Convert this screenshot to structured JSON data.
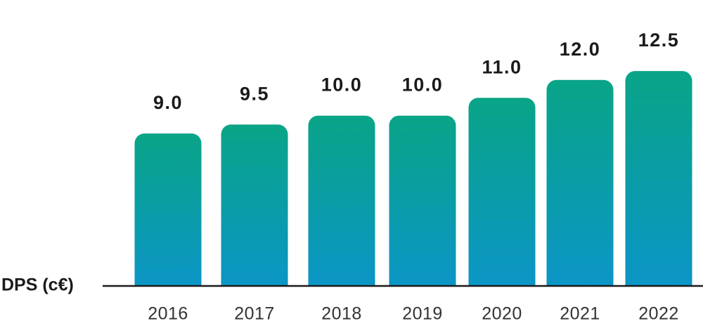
{
  "chart_data": {
    "type": "bar",
    "title": "",
    "xlabel": "",
    "ylabel": "DPS (c€)",
    "categories": [
      "2016",
      "2017",
      "2018",
      "2019",
      "2020",
      "2021",
      "2022"
    ],
    "values": [
      9.0,
      9.5,
      10.0,
      10.0,
      11.0,
      12.0,
      12.5
    ],
    "value_labels": [
      "9.0",
      "9.5",
      "10.0",
      "10.0",
      "11.0",
      "12.0",
      "12.5"
    ],
    "grid": false,
    "legend": "none",
    "colors": {
      "bar_top": "#0aa487",
      "bar_bottom": "#0b95c9",
      "axis": "#1a1a1a",
      "text": "#1a1a1a"
    }
  }
}
